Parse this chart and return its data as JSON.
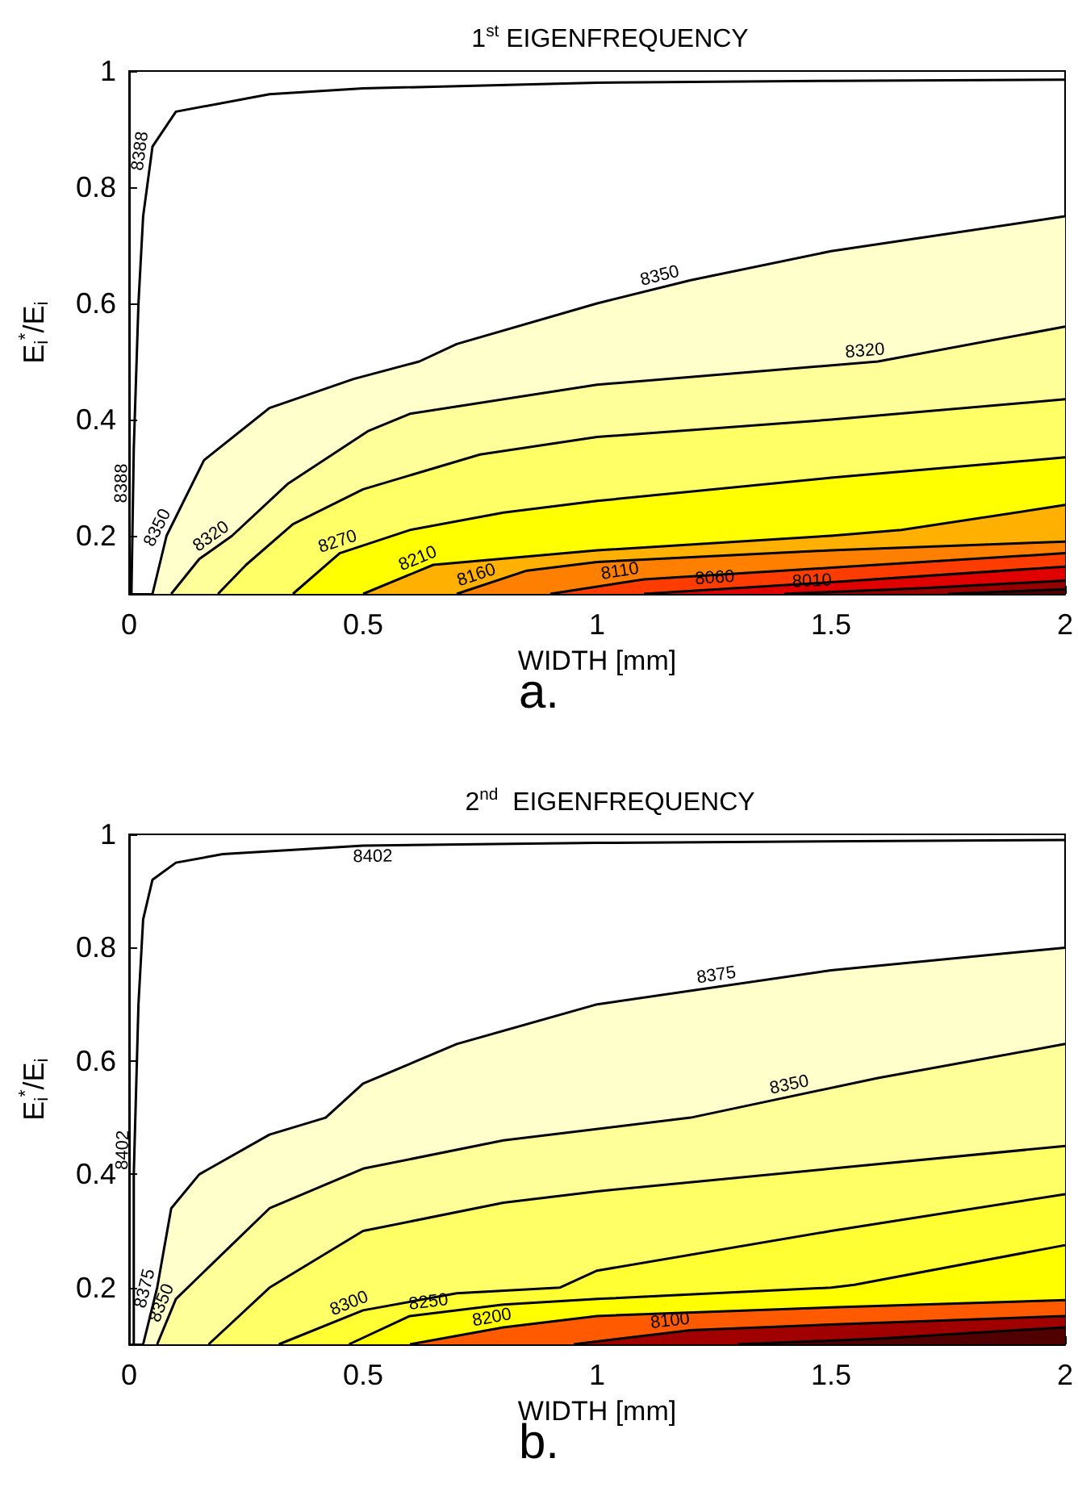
{
  "chart_data": [
    {
      "type": "area",
      "title": "1$^{st}$ EIGENFREQUENCY",
      "xlabel": "WIDTH [mm]",
      "ylabel": "E$_{i}$$^{*}$/E$_{i}$",
      "annotations": [
        "a."
      ],
      "xlim": [
        0,
        2
      ],
      "xticks": [
        0,
        0.5,
        1,
        1.5,
        2
      ],
      "ylim": [
        0.1,
        1
      ],
      "yticks": [
        0.2,
        0.4,
        0.6,
        0.8,
        1
      ],
      "grid": false,
      "legend": false,
      "line_style": "solid",
      "series": [
        {
          "type": "line",
          "name": "8388",
          "color": "#000000",
          "x": [
            0.005,
            0.01,
            0.02,
            0.03,
            0.05,
            0.1,
            0.3,
            0.5,
            1,
            1.5,
            2
          ],
          "values": [
            0.1,
            0.35,
            0.6,
            0.75,
            0.87,
            0.93,
            0.96,
            0.97,
            0.98,
            0.983,
            0.985
          ]
        },
        {
          "name": "8350",
          "color": "#ffffcc",
          "x": [
            0.05,
            0.08,
            0.16,
            0.3,
            0.48,
            0.62,
            0.7,
            1,
            1.2,
            1.5,
            2
          ],
          "values": [
            0.1,
            0.2,
            0.33,
            0.42,
            0.47,
            0.5,
            0.53,
            0.6,
            0.64,
            0.69,
            0.75
          ]
        },
        {
          "name": "8320",
          "color": "#ffff99",
          "x": [
            0.09,
            0.15,
            0.22,
            0.34,
            0.51,
            0.6,
            1,
            1.6,
            2
          ],
          "values": [
            0.1,
            0.16,
            0.2,
            0.29,
            0.38,
            0.41,
            0.46,
            0.5,
            0.56
          ]
        },
        {
          "color": "#ffff66",
          "x": [
            0.19,
            0.25,
            0.35,
            0.5,
            0.75,
            1,
            1.5,
            2
          ],
          "values": [
            0.1,
            0.15,
            0.22,
            0.28,
            0.34,
            0.37,
            0.4,
            0.435
          ]
        },
        {
          "name": "8270",
          "color": "#ffff00",
          "x": [
            0.35,
            0.45,
            0.6,
            0.8,
            1,
            1.5,
            2
          ],
          "values": [
            0.1,
            0.17,
            0.21,
            0.24,
            0.26,
            0.3,
            0.335
          ]
        },
        {
          "name": "8210",
          "color": "#ffb000",
          "x": [
            0.5,
            0.65,
            1,
            1.5,
            1.65,
            2
          ],
          "values": [
            0.1,
            0.15,
            0.175,
            0.2,
            0.21,
            0.253
          ]
        },
        {
          "name": "8160",
          "color": "#ff8000",
          "x": [
            0.7,
            0.85,
            1,
            1.5,
            2
          ],
          "values": [
            0.1,
            0.14,
            0.155,
            0.175,
            0.19
          ]
        },
        {
          "name": "8110",
          "color": "#ff3c00",
          "x": [
            0.9,
            1.1,
            1.5,
            2
          ],
          "values": [
            0.1,
            0.125,
            0.145,
            0.17
          ]
        },
        {
          "name": "8060",
          "color": "#e00000",
          "x": [
            1.1,
            1.5,
            2
          ],
          "values": [
            0.1,
            0.12,
            0.147
          ]
        },
        {
          "name": "8010",
          "color": "#960000",
          "x": [
            1.4,
            1.7,
            2
          ],
          "values": [
            0.1,
            0.11,
            0.123
          ]
        },
        {
          "color": "#550000",
          "x": [
            1.75,
            2
          ],
          "values": [
            0.1,
            0.108
          ]
        }
      ]
    },
    {
      "type": "area",
      "title": "2$^{nd}$  EIGENFREQUENCY",
      "xlabel": "WIDTH [mm]",
      "ylabel": "E$_{i}$$^{*}$/E$_{i}$",
      "annotations": [
        "b."
      ],
      "xlim": [
        0,
        2
      ],
      "xticks": [
        0,
        0.5,
        1,
        1.5,
        2
      ],
      "ylim": [
        0.1,
        1
      ],
      "yticks": [
        0.2,
        0.4,
        0.6,
        0.8,
        1
      ],
      "grid": false,
      "legend": false,
      "line_style": "solid",
      "series": [
        {
          "type": "line",
          "name": "8402",
          "color": "#000000",
          "x": [
            0.01,
            0.01,
            0.02,
            0.03,
            0.05,
            0.1,
            0.2,
            0.5,
            1,
            2
          ],
          "values": [
            0.1,
            0.4,
            0.7,
            0.85,
            0.92,
            0.95,
            0.965,
            0.98,
            0.985,
            0.99
          ]
        },
        {
          "name": "8375",
          "color": "#ffffcc",
          "x": [
            0.03,
            0.06,
            0.09,
            0.15,
            0.3,
            0.42,
            0.5,
            0.7,
            1,
            1.5,
            2
          ],
          "values": [
            0.1,
            0.2,
            0.34,
            0.4,
            0.47,
            0.5,
            0.56,
            0.63,
            0.7,
            0.76,
            0.8
          ]
        },
        {
          "name": "8350",
          "color": "#ffff99",
          "x": [
            0.06,
            0.1,
            0.2,
            0.3,
            0.5,
            0.8,
            1.2,
            1.6,
            2
          ],
          "values": [
            0.1,
            0.18,
            0.26,
            0.34,
            0.41,
            0.46,
            0.5,
            0.57,
            0.63
          ]
        },
        {
          "color": "#ffff66",
          "x": [
            0.17,
            0.3,
            0.5,
            0.8,
            1,
            1.5,
            2
          ],
          "values": [
            0.1,
            0.2,
            0.3,
            0.35,
            0.37,
            0.41,
            0.45
          ]
        },
        {
          "name": "8300",
          "color": "#ffff33",
          "x": [
            0.32,
            0.5,
            0.7,
            0.92,
            1,
            1.5,
            2
          ],
          "values": [
            0.1,
            0.16,
            0.19,
            0.2,
            0.23,
            0.3,
            0.365
          ]
        },
        {
          "name": "8250",
          "color": "#ffff00",
          "x": [
            0.47,
            0.6,
            0.8,
            1,
            1.5,
            1.55,
            2
          ],
          "values": [
            0.1,
            0.15,
            0.17,
            0.18,
            0.2,
            0.205,
            0.275
          ]
        },
        {
          "name": "8200",
          "color": "#ff5a00",
          "x": [
            0.6,
            0.8,
            1,
            1.5,
            2
          ],
          "values": [
            0.1,
            0.13,
            0.15,
            0.165,
            0.178
          ]
        },
        {
          "name": "8100",
          "color": "#a00000",
          "x": [
            0.95,
            1.2,
            1.5,
            2
          ],
          "values": [
            0.1,
            0.125,
            0.135,
            0.15
          ]
        },
        {
          "color": "#500000",
          "x": [
            1.3,
            1.6,
            2
          ],
          "values": [
            0.1,
            0.11,
            0.13
          ]
        }
      ]
    }
  ]
}
